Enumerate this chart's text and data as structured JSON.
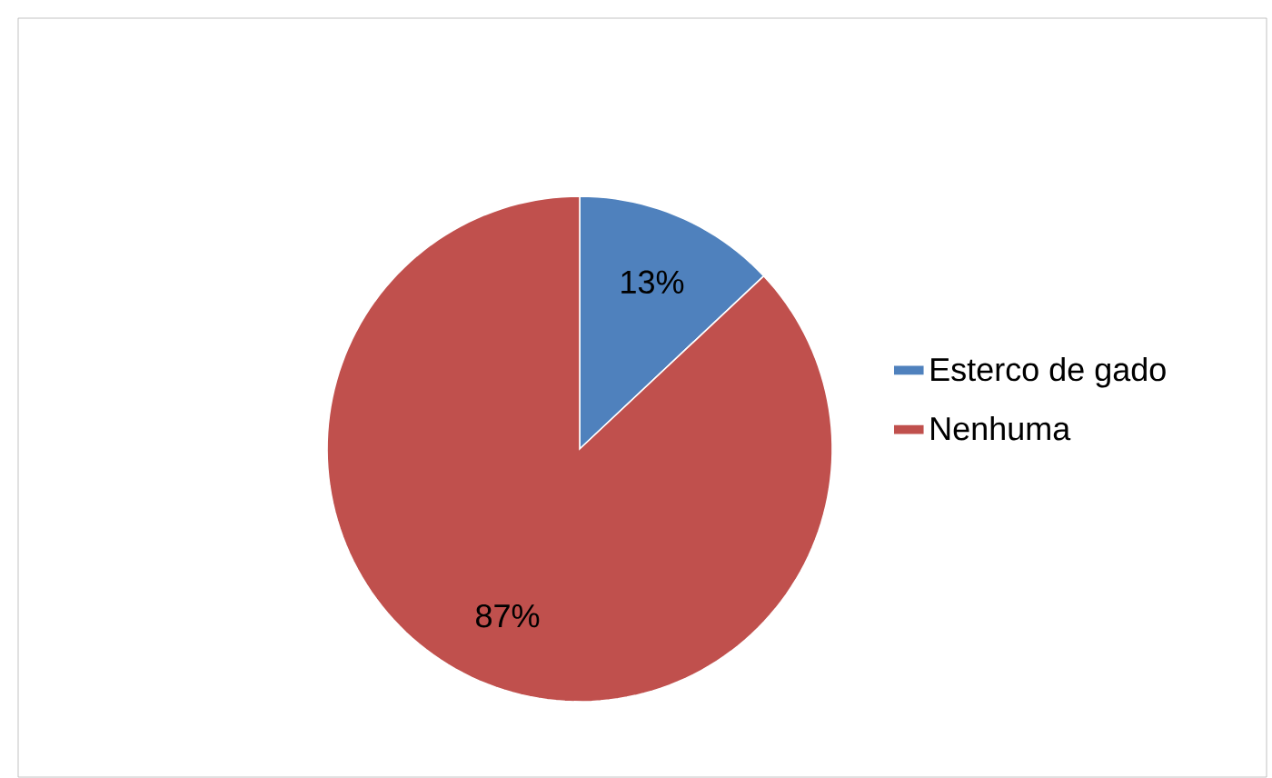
{
  "chart_data": {
    "type": "pie",
    "categories": [
      "Esterco de gado",
      "Nenhuma"
    ],
    "values": [
      13,
      87
    ],
    "colors": [
      "#4f81bd",
      "#c0504d"
    ],
    "value_labels": [
      "13%",
      "87%"
    ],
    "legend": "right"
  }
}
